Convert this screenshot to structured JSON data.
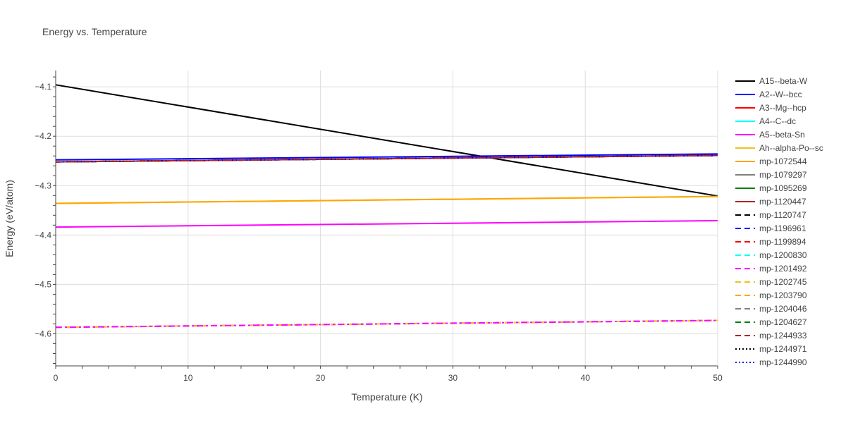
{
  "chart_data": {
    "type": "line",
    "title": "Energy vs. Temperature",
    "xlabel": "Temperature (K)",
    "ylabel": "Energy (eV/atom)",
    "xlim": [
      0,
      50
    ],
    "ylim": [
      -4.665,
      -4.067
    ],
    "x_ticks": [
      0,
      10,
      20,
      30,
      40,
      50
    ],
    "y_ticks": [
      -4.1,
      -4.2,
      -4.3,
      -4.4,
      -4.5,
      -4.6
    ],
    "x_tick_labels": [
      "0",
      "10",
      "20",
      "30",
      "40",
      "50"
    ],
    "y_tick_labels": [
      "−4.1",
      "−4.2",
      "−4.3",
      "−4.4",
      "−4.5",
      "−4.6"
    ],
    "grid": true,
    "legend_position": "right",
    "series": [
      {
        "name": "A15--beta-W",
        "color": "#000000",
        "dash": "solid",
        "x": [
          0,
          50
        ],
        "y": [
          -4.096,
          -4.321
        ]
      },
      {
        "name": "A2--W--bcc",
        "color": "#0000ff",
        "dash": "solid",
        "x": [
          0,
          50
        ],
        "y": [
          -4.248,
          -4.236
        ]
      },
      {
        "name": "A3--Mg--hcp",
        "color": "#ff0000",
        "dash": "solid",
        "x": [
          0,
          50
        ],
        "y": [
          -4.252,
          -4.239
        ]
      },
      {
        "name": "A4--C--dc",
        "color": "#00ffff",
        "dash": "solid",
        "x": [
          0,
          50
        ],
        "y": [
          -4.252,
          -4.239
        ]
      },
      {
        "name": "A5--beta-Sn",
        "color": "#ff00ff",
        "dash": "solid",
        "x": [
          0,
          50
        ],
        "y": [
          -4.384,
          -4.371
        ]
      },
      {
        "name": "Ah--alpha-Po--sc",
        "color": "#f0c020",
        "dash": "solid",
        "x": [
          0,
          50
        ],
        "y": [
          -4.336,
          -4.322
        ]
      },
      {
        "name": "mp-1072544",
        "color": "#ffa500",
        "dash": "solid",
        "x": [
          0,
          50
        ],
        "y": [
          -4.336,
          -4.322
        ]
      },
      {
        "name": "mp-1079297",
        "color": "#808080",
        "dash": "solid",
        "x": [
          0,
          50
        ],
        "y": [
          -4.252,
          -4.239
        ]
      },
      {
        "name": "mp-1095269",
        "color": "#008000",
        "dash": "solid",
        "x": [
          0,
          50
        ],
        "y": [
          -4.252,
          -4.239
        ]
      },
      {
        "name": "mp-1120447",
        "color": "#b22222",
        "dash": "solid",
        "x": [
          0,
          50
        ],
        "y": [
          -4.252,
          -4.239
        ]
      },
      {
        "name": "mp-1120747",
        "color": "#000000",
        "dash": "dash",
        "x": [
          0,
          50
        ],
        "y": [
          -4.252,
          -4.239
        ]
      },
      {
        "name": "mp-1196961",
        "color": "#0000ff",
        "dash": "dash",
        "x": [
          0,
          50
        ],
        "y": [
          -4.252,
          -4.239
        ]
      },
      {
        "name": "mp-1199894",
        "color": "#ff0000",
        "dash": "dash",
        "x": [
          0,
          50
        ],
        "y": [
          -4.252,
          -4.239
        ]
      },
      {
        "name": "mp-1200830",
        "color": "#00ffff",
        "dash": "dash",
        "x": [
          0,
          50
        ],
        "y": [
          -4.587,
          -4.573
        ]
      },
      {
        "name": "mp-1201492",
        "color": "#ff00ff",
        "dash": "dash",
        "x": [
          0,
          50
        ],
        "y": [
          -4.587,
          -4.573
        ]
      },
      {
        "name": "mp-1202745",
        "color": "#f0c020",
        "dash": "dash",
        "x": [
          0,
          50
        ],
        "y": [
          -4.587,
          -4.573
        ]
      },
      {
        "name": "mp-1203790",
        "color": "#ffa500",
        "dash": "dash",
        "x": [
          0,
          50
        ],
        "y": [
          -4.252,
          -4.239
        ]
      },
      {
        "name": "mp-1204046",
        "color": "#808080",
        "dash": "dash",
        "x": [
          0,
          50
        ],
        "y": [
          -4.252,
          -4.239
        ]
      },
      {
        "name": "mp-1204627",
        "color": "#008000",
        "dash": "dash",
        "x": [
          0,
          50
        ],
        "y": [
          -4.252,
          -4.239
        ]
      },
      {
        "name": "mp-1244933",
        "color": "#b22222",
        "dash": "dash",
        "x": [
          0,
          50
        ],
        "y": [
          -4.252,
          -4.239
        ]
      },
      {
        "name": "mp-1244971",
        "color": "#000000",
        "dash": "dot",
        "x": [
          0,
          50
        ],
        "y": [
          -4.252,
          -4.239
        ]
      },
      {
        "name": "mp-1244990",
        "color": "#0000ff",
        "dash": "dot",
        "x": [
          0,
          50
        ],
        "y": [
          -4.252,
          -4.239
        ]
      }
    ],
    "overlay_lines": [
      {
        "color": "#ff00ff",
        "dash": "dashdot",
        "x": [
          0,
          50
        ],
        "y": [
          -4.587,
          -4.573
        ]
      },
      {
        "color": "#b22222",
        "dash": "dashdot",
        "x": [
          0,
          50
        ],
        "y": [
          -4.252,
          -4.239
        ]
      }
    ]
  }
}
